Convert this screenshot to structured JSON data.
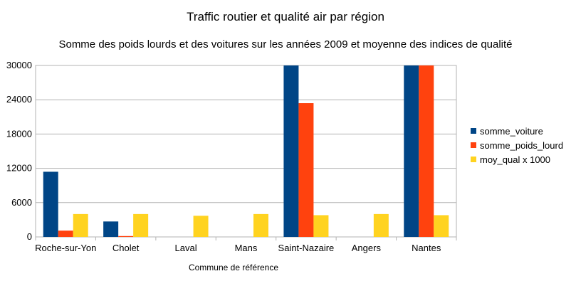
{
  "chart_data": {
    "type": "bar",
    "title": "Traffic routier et qualité air par région",
    "subtitle": "Somme des poids lourds et des voitures sur les années 2009 et moyenne des indices de qualité",
    "xlabel": "Commune de référence",
    "ylabel": "",
    "ylim": [
      0,
      30000
    ],
    "yticks": [
      "0",
      "6000",
      "12000",
      "18000",
      "24000",
      "30000"
    ],
    "grid": true,
    "legend_position": "right",
    "categories": [
      "Roche-sur-Yon",
      "Cholet",
      "Laval",
      "Mans",
      "Saint-Nazaire",
      "Angers",
      "Nantes"
    ],
    "series": [
      {
        "name": "somme_voiture",
        "color": "#004586",
        "values": [
          11400,
          2700,
          0,
          0,
          30000,
          0,
          30000
        ]
      },
      {
        "name": "somme_poids_lourd",
        "color": "#ff420e",
        "values": [
          1100,
          150,
          0,
          0,
          23400,
          0,
          30000
        ]
      },
      {
        "name": "moy_qual x 1000",
        "color": "#ffd320",
        "values": [
          4000,
          4000,
          3700,
          4000,
          3800,
          4000,
          3800
        ]
      }
    ]
  }
}
